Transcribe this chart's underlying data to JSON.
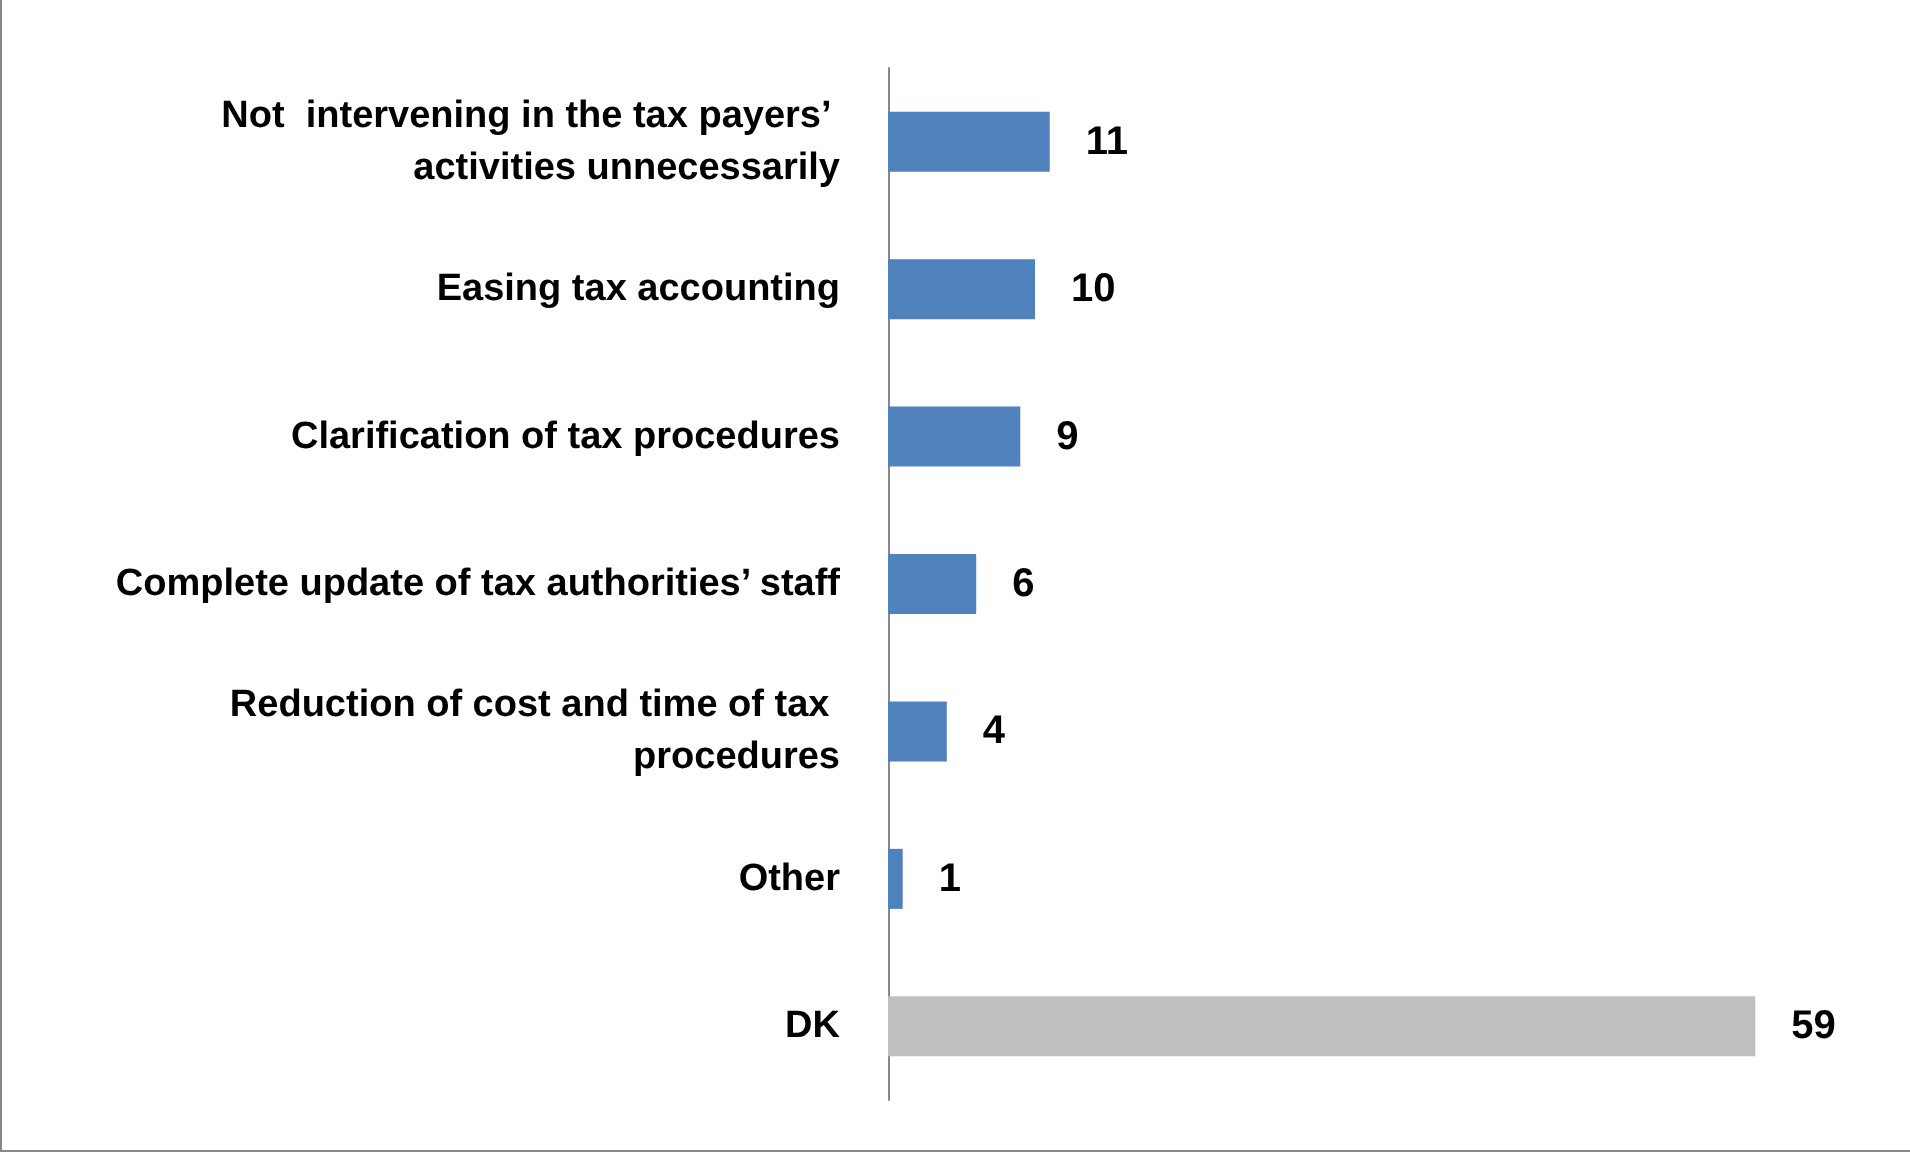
{
  "chart_data": {
    "type": "bar",
    "orientation": "horizontal",
    "categories": [
      "Not  intervening in the tax payers’ activities unnecessarily",
      "Easing tax accounting",
      "Clarification of tax procedures",
      "Complete update of tax authorities’ staff",
      "Reduction of cost and time of tax procedures",
      "Other",
      "DK"
    ],
    "values": [
      11,
      10,
      9,
      6,
      4,
      1,
      59
    ],
    "colors": [
      "#4f81bd",
      "#4f81bd",
      "#4f81bd",
      "#4f81bd",
      "#4f81bd",
      "#4f81bd",
      "#bfbfbf"
    ],
    "data_labels": true
  }
}
